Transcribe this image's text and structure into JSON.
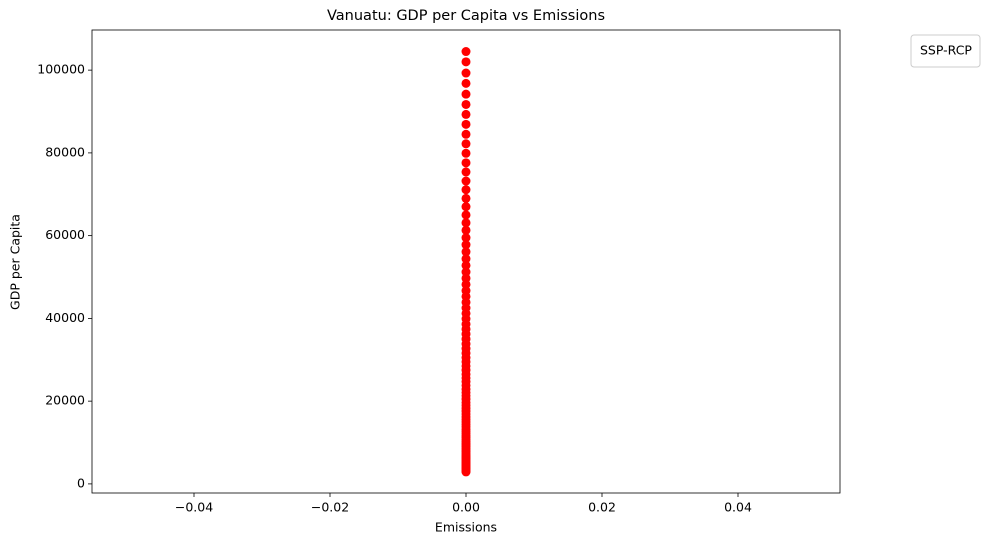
{
  "chart_data": {
    "type": "scatter",
    "title": "Vanuatu: GDP per Capita vs Emissions",
    "xlabel": "Emissions",
    "ylabel": "GDP per Capita",
    "legend_title": "SSP-RCP",
    "legend_position": "outside upper right",
    "color": "#ff0000",
    "grid": false,
    "xlim": [
      -0.055,
      0.055
    ],
    "xticks": [
      {
        "value": -0.04,
        "label": "−0.04"
      },
      {
        "value": -0.02,
        "label": "−0.02"
      },
      {
        "value": 0,
        "label": "0.00"
      },
      0.02,
      0.04
    ],
    "ylim": [
      -2200,
      109700
    ],
    "yticks": [
      0,
      20000,
      40000,
      60000,
      80000,
      100000
    ],
    "x": [
      0,
      0,
      0,
      0,
      0,
      0,
      0,
      0,
      0,
      0,
      0,
      0,
      0,
      0,
      0,
      0,
      0,
      0,
      0,
      0,
      0,
      0,
      0,
      0,
      0,
      0,
      0,
      0,
      0,
      0,
      0,
      0,
      0,
      0,
      0,
      0,
      0,
      0,
      0,
      0,
      0,
      0,
      0,
      0,
      0,
      0,
      0,
      0,
      0,
      0,
      0,
      0,
      0,
      0,
      0,
      0,
      0,
      0,
      0,
      0,
      0,
      0,
      0,
      0,
      0,
      0,
      0,
      0,
      0,
      0,
      0,
      0,
      0,
      0,
      0,
      0,
      0,
      0,
      0,
      0,
      0,
      0,
      0,
      0,
      0,
      0,
      0,
      0,
      0,
      0,
      0,
      0
    ],
    "values": [
      104500,
      102000,
      99300,
      96800,
      94200,
      91700,
      89300,
      86900,
      84500,
      82200,
      79900,
      77600,
      75400,
      73200,
      71100,
      69000,
      67000,
      65000,
      63100,
      61300,
      59500,
      57800,
      56100,
      54400,
      52800,
      51200,
      49700,
      48200,
      46700,
      45300,
      43900,
      42500,
      41200,
      39900,
      38600,
      37400,
      36200,
      35000,
      33800,
      32700,
      31600,
      30500,
      29500,
      28500,
      27500,
      26500,
      25600,
      24700,
      23800,
      22900,
      22100,
      21300,
      20500,
      19700,
      19000,
      18300,
      17600,
      16900,
      16200,
      15600,
      15000,
      14400,
      13800,
      13200,
      12700,
      12200,
      11700,
      11200,
      10700,
      10200,
      9800,
      9400,
      9000,
      8600,
      8200,
      7800,
      7400,
      7000,
      6700,
      6400,
      6100,
      5800,
      5500,
      5200,
      4900,
      4600,
      4300,
      4000,
      3700,
      3400,
      3100,
      2900
    ]
  }
}
